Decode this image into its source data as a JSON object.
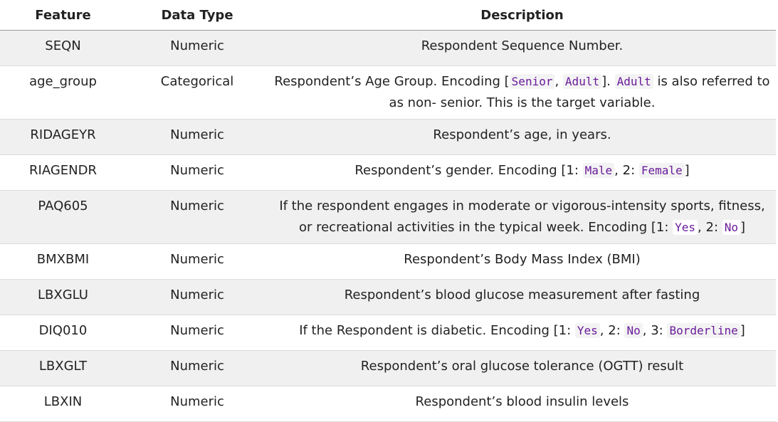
{
  "headers": {
    "feature": "Feature",
    "data_type": "Data Type",
    "description": "Description"
  },
  "rows": [
    {
      "feature": "SEQN",
      "type": "Numeric",
      "desc": [
        {
          "t": "Respondent Sequence Number."
        }
      ]
    },
    {
      "feature": "age_group",
      "type": "Categorical",
      "desc": [
        {
          "t": "Respondent’s Age Group. Encoding ["
        },
        {
          "c": "Senior"
        },
        {
          "t": ", "
        },
        {
          "c": "Adult"
        },
        {
          "t": "]. "
        },
        {
          "c": "Adult"
        },
        {
          "t": " is also referred to as non- senior. This is the target variable."
        }
      ]
    },
    {
      "feature": "RIDAGEYR",
      "type": "Numeric",
      "desc": [
        {
          "t": "Respondent’s age, in years."
        }
      ]
    },
    {
      "feature": "RIAGENDR",
      "type": "Numeric",
      "desc": [
        {
          "t": "Respondent’s gender. Encoding [1: "
        },
        {
          "c": "Male"
        },
        {
          "t": ", 2: "
        },
        {
          "c": "Female"
        },
        {
          "t": "]"
        }
      ]
    },
    {
      "feature": "PAQ605",
      "type": "Numeric",
      "desc": [
        {
          "t": "If the respondent engages in moderate or vigorous-intensity sports, fitness, or recreational activities in the typical week. Encoding [1: "
        },
        {
          "c": "Yes"
        },
        {
          "t": ", 2: "
        },
        {
          "c": "No"
        },
        {
          "t": "]"
        }
      ]
    },
    {
      "feature": "BMXBMI",
      "type": "Numeric",
      "desc": [
        {
          "t": "Respondent’s Body Mass Index (BMI)"
        }
      ]
    },
    {
      "feature": "LBXGLU",
      "type": "Numeric",
      "desc": [
        {
          "t": "Respondent’s blood glucose measurement after fasting"
        }
      ]
    },
    {
      "feature": "DIQ010",
      "type": "Numeric",
      "desc": [
        {
          "t": "If the Respondent is diabetic. Encoding [1: "
        },
        {
          "c": "Yes"
        },
        {
          "t": ", 2: "
        },
        {
          "c": "No"
        },
        {
          "t": ", 3: "
        },
        {
          "c": "Borderline"
        },
        {
          "t": "]"
        }
      ]
    },
    {
      "feature": "LBXGLT",
      "type": "Numeric",
      "desc": [
        {
          "t": "Respondent’s oral glucose tolerance (OGTT) result"
        }
      ]
    },
    {
      "feature": "LBXIN",
      "type": "Numeric",
      "desc": [
        {
          "t": "Respondent’s blood insulin levels"
        }
      ]
    }
  ]
}
